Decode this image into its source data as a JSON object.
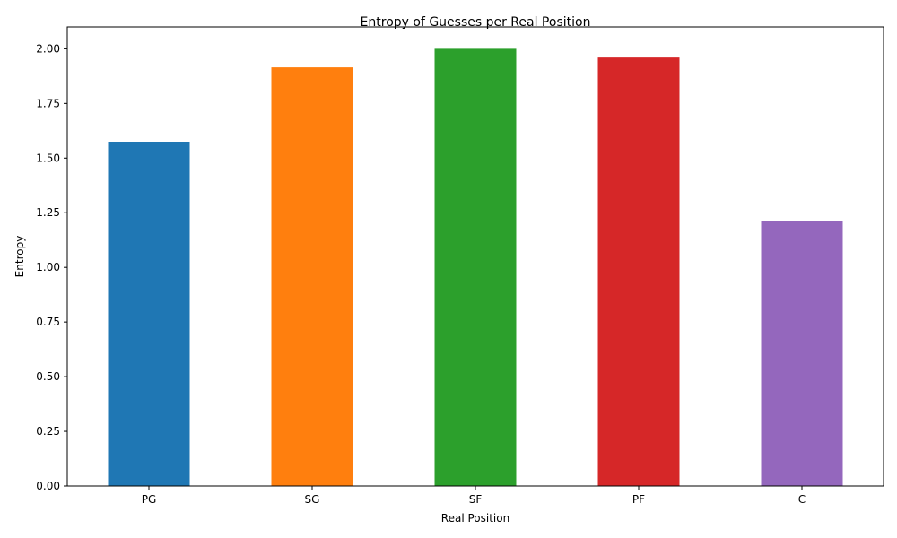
{
  "chart_data": {
    "type": "bar",
    "title": "Entropy of Guesses per Real Position",
    "xlabel": "Real Position",
    "ylabel": "Entropy",
    "categories": [
      "PG",
      "SG",
      "SF",
      "PF",
      "C"
    ],
    "values": [
      1.575,
      1.915,
      2.0,
      1.96,
      1.21
    ],
    "colors": [
      "#1f77b4",
      "#ff7f0e",
      "#2ca02c",
      "#d62728",
      "#9467bd"
    ],
    "ylim": [
      0,
      2.1
    ],
    "yticks": [
      "0.00",
      "0.25",
      "0.50",
      "0.75",
      "1.00",
      "1.25",
      "1.50",
      "1.75",
      "2.00"
    ],
    "grid": false,
    "legend": false
  }
}
